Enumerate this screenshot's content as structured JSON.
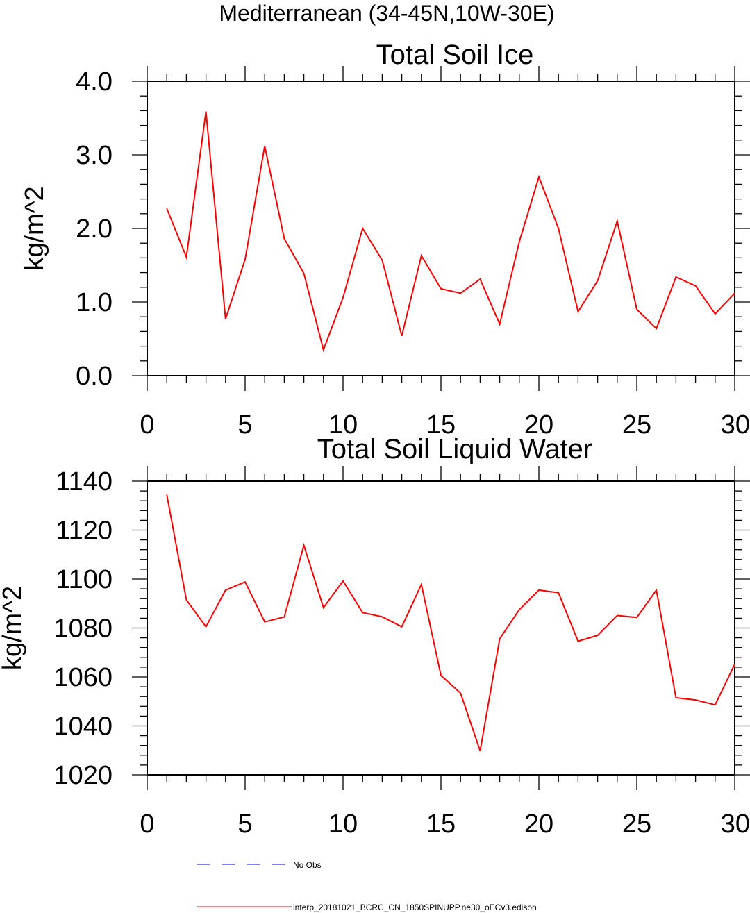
{
  "figure": {
    "title": "Mediterranean (34-45N,10W-30E)"
  },
  "legend": {
    "entries": [
      {
        "label": "No Obs",
        "color": "#0000ff",
        "style": "dashed"
      },
      {
        "label": "interp_20181021_BCRC_CN_1850SPINUPP.ne30_oECv3.edison",
        "color": "#ff0000",
        "style": "solid"
      }
    ]
  },
  "chart_data": [
    {
      "type": "line",
      "title": "Total Soil Ice",
      "xlabel": "",
      "ylabel": "kg/m^2",
      "xlim": [
        0,
        30
      ],
      "ylim": [
        0,
        4
      ],
      "x_ticks": [
        0,
        5,
        10,
        15,
        20,
        25,
        30
      ],
      "x_tick_labels": [
        "0",
        "5",
        "10",
        "15",
        "20",
        "25",
        "30"
      ],
      "y_ticks": [
        0,
        1,
        2,
        3,
        4
      ],
      "y_tick_labels": [
        "0.0",
        "1.0",
        "2.0",
        "3.0",
        "4.0"
      ],
      "series": [
        {
          "name": "interp_20181021_BCRC_CN_1850SPINUPP.ne30_oECv3.edison",
          "color": "#ff0000",
          "x": [
            1,
            2,
            3,
            4,
            5,
            6,
            7,
            8,
            9,
            10,
            11,
            12,
            13,
            14,
            15,
            16,
            17,
            18,
            19,
            20,
            21,
            22,
            23,
            24,
            25,
            26,
            27,
            28,
            29,
            30
          ],
          "values": [
            2.27,
            1.61,
            3.59,
            0.77,
            1.58,
            3.12,
            1.86,
            1.39,
            0.35,
            1.06,
            2.0,
            1.57,
            0.54,
            1.63,
            1.18,
            1.12,
            1.31,
            0.7,
            1.82,
            2.7,
            2.0,
            0.87,
            1.29,
            2.1,
            0.9,
            0.64,
            1.34,
            1.22,
            0.84,
            1.12
          ]
        }
      ]
    },
    {
      "type": "line",
      "title": "Total Soil Liquid Water",
      "xlabel": "",
      "ylabel": "kg/m^2",
      "xlim": [
        0,
        30
      ],
      "ylim": [
        1020,
        1140
      ],
      "x_ticks": [
        0,
        5,
        10,
        15,
        20,
        25,
        30
      ],
      "x_tick_labels": [
        "0",
        "5",
        "10",
        "15",
        "20",
        "25",
        "30"
      ],
      "y_ticks": [
        1020,
        1040,
        1060,
        1080,
        1100,
        1120,
        1140
      ],
      "y_tick_labels": [
        "1020",
        "1040",
        "1060",
        "1080",
        "1100",
        "1120",
        "1140"
      ],
      "series": [
        {
          "name": "interp_20181021_BCRC_CN_1850SPINUPP.ne30_oECv3.edison",
          "color": "#ff0000",
          "x": [
            1,
            2,
            3,
            4,
            5,
            6,
            7,
            8,
            9,
            10,
            11,
            12,
            13,
            14,
            15,
            16,
            17,
            18,
            19,
            20,
            21,
            22,
            23,
            24,
            25,
            26,
            27,
            28,
            29,
            30
          ],
          "values": [
            1134.5,
            1091.5,
            1080.5,
            1095.5,
            1098.8,
            1082.5,
            1084.5,
            1113.8,
            1088.3,
            1099.2,
            1086.3,
            1084.6,
            1080.5,
            1097.8,
            1060.6,
            1053.4,
            1029.8,
            1075.6,
            1087.5,
            1095.5,
            1094.4,
            1074.6,
            1077,
            1085.1,
            1084.3,
            1095.5,
            1051.5,
            1050.6,
            1048.6,
            1065.2
          ]
        }
      ]
    }
  ]
}
